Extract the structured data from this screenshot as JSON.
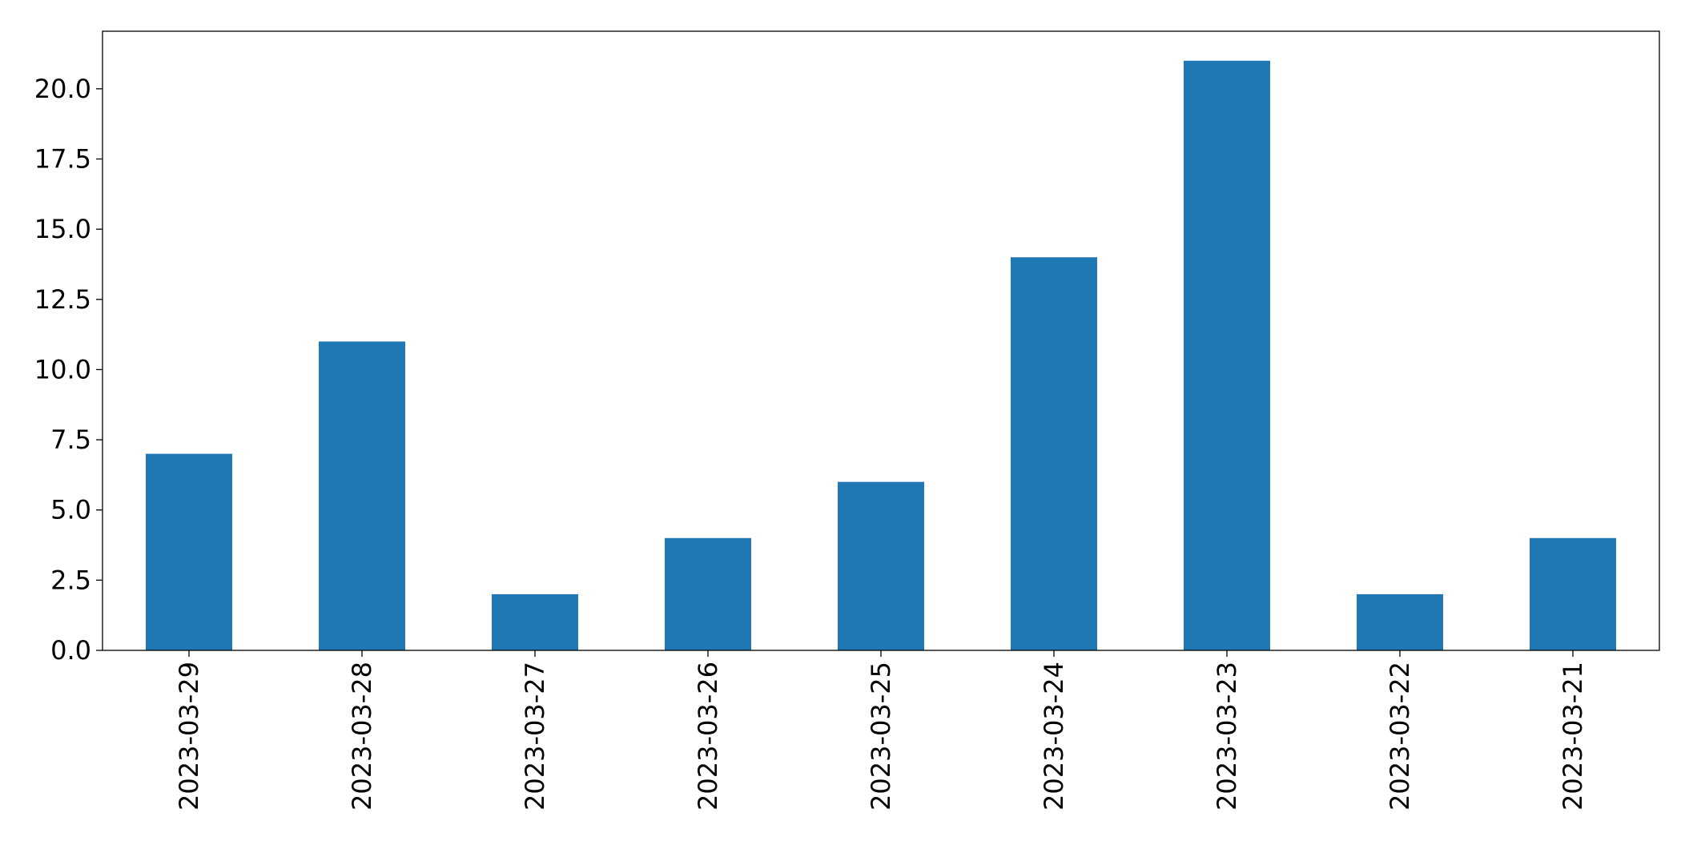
{
  "chart_data": {
    "type": "bar",
    "title": "",
    "xlabel": "",
    "ylabel": "",
    "categories": [
      "2023-03-29",
      "2023-03-28",
      "2023-03-27",
      "2023-03-26",
      "2023-03-25",
      "2023-03-24",
      "2023-03-23",
      "2023-03-22",
      "2023-03-21"
    ],
    "values": [
      7,
      11,
      2,
      4,
      6,
      14,
      21,
      2,
      4
    ],
    "ylim": [
      0,
      22.05
    ],
    "yticks": [
      0,
      2.5,
      5,
      7.5,
      10,
      12.5,
      15,
      17.5,
      20
    ],
    "ytick_labels": [
      "0.0",
      "2.5",
      "5.0",
      "7.5",
      "10.0",
      "12.5",
      "15.0",
      "17.5",
      "20.0"
    ],
    "x_tick_rotation": "vertical",
    "grid": false,
    "legend": "none",
    "bar_color": "#1f77b4"
  }
}
